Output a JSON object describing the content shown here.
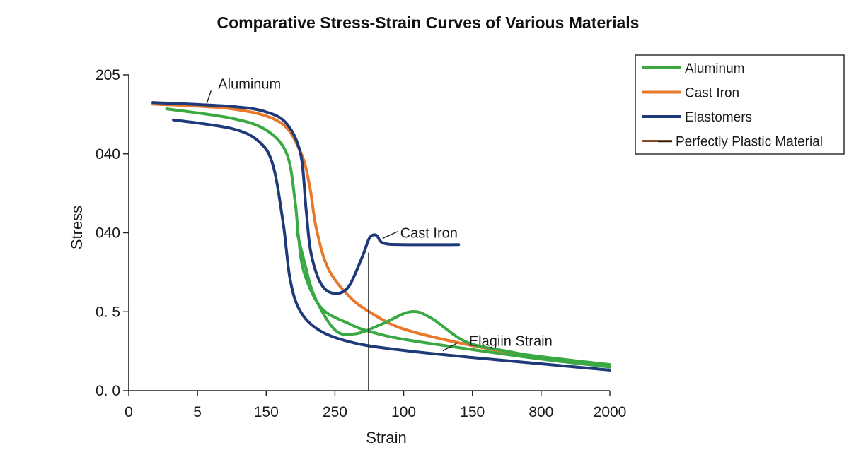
{
  "chart_data": {
    "type": "line",
    "title": "Comparative Stress-Strain Curves of Various Materials",
    "xlabel": "Strain",
    "ylabel": "Stress",
    "x_tick_labels": [
      "0",
      "5",
      "150",
      "250",
      "100",
      "150",
      "800",
      "2000"
    ],
    "y_tick_labels": [
      "0. 0",
      "0. 5",
      "040",
      "040",
      "205"
    ],
    "x_index_range": [
      0,
      7
    ],
    "y_index_range": [
      0,
      4
    ],
    "grid": false,
    "legend_position": "top-right",
    "legend": [
      {
        "label": "Aluminum",
        "color": "#3aa843"
      },
      {
        "label": "Cast Iron",
        "color": "#e8782a"
      },
      {
        "label": "Elastomers",
        "color": "#1f3a78"
      },
      {
        "label": "Perfectly Plastic Material",
        "color": "#8a4a2a"
      }
    ],
    "series": [
      {
        "color": "#e8782a",
        "points": [
          [
            0.35,
            3.63
          ],
          [
            1.5,
            3.57
          ],
          [
            2.2,
            3.4
          ],
          [
            2.5,
            3.02
          ],
          [
            2.63,
            2.6
          ],
          [
            2.73,
            2.05
          ],
          [
            2.9,
            1.55
          ],
          [
            3.2,
            1.2
          ],
          [
            3.5,
            1.0
          ],
          [
            4.0,
            0.78
          ],
          [
            5.0,
            0.57
          ],
          [
            6.0,
            0.42
          ],
          [
            7.0,
            0.33
          ]
        ]
      },
      {
        "color": "#1f3a78",
        "points": [
          [
            0.35,
            3.65
          ],
          [
            1.5,
            3.6
          ],
          [
            2.0,
            3.53
          ],
          [
            2.3,
            3.38
          ],
          [
            2.5,
            3.0
          ],
          [
            2.58,
            2.3
          ],
          [
            2.65,
            1.75
          ],
          [
            2.8,
            1.35
          ],
          [
            3.0,
            1.23
          ],
          [
            3.2,
            1.32
          ],
          [
            3.4,
            1.7
          ],
          [
            3.5,
            1.93
          ],
          [
            3.6,
            1.97
          ],
          [
            3.7,
            1.87
          ],
          [
            4.0,
            1.85
          ],
          [
            4.8,
            1.85
          ]
        ]
      },
      {
        "color": "#1f3a78",
        "points": [
          [
            0.65,
            3.43
          ],
          [
            1.5,
            3.32
          ],
          [
            1.9,
            3.15
          ],
          [
            2.1,
            2.85
          ],
          [
            2.25,
            2.1
          ],
          [
            2.35,
            1.4
          ],
          [
            2.5,
            1.0
          ],
          [
            2.8,
            0.75
          ],
          [
            3.3,
            0.6
          ],
          [
            4.0,
            0.51
          ],
          [
            5.0,
            0.42
          ],
          [
            6.0,
            0.34
          ],
          [
            7.0,
            0.26
          ]
        ]
      },
      {
        "color": "#3aa843",
        "points": [
          [
            0.55,
            3.57
          ],
          [
            1.5,
            3.45
          ],
          [
            2.0,
            3.3
          ],
          [
            2.3,
            3.0
          ],
          [
            2.42,
            2.4
          ],
          [
            2.47,
            1.95
          ],
          [
            2.55,
            1.5
          ],
          [
            2.8,
            1.05
          ],
          [
            3.2,
            0.85
          ],
          [
            3.5,
            0.75
          ],
          [
            4.0,
            0.65
          ],
          [
            5.0,
            0.52
          ],
          [
            6.0,
            0.4
          ],
          [
            7.0,
            0.3
          ]
        ]
      },
      {
        "color": "#3aa843",
        "points": [
          [
            2.45,
            2.0
          ],
          [
            2.55,
            1.65
          ],
          [
            2.7,
            1.2
          ],
          [
            3.0,
            0.77
          ],
          [
            3.3,
            0.72
          ],
          [
            3.7,
            0.85
          ],
          [
            4.1,
            1.0
          ],
          [
            4.4,
            0.92
          ],
          [
            4.9,
            0.62
          ],
          [
            5.5,
            0.5
          ],
          [
            6.0,
            0.43
          ],
          [
            7.0,
            0.33
          ]
        ]
      }
    ],
    "vertical_marker_x": 3.49,
    "annotations": [
      {
        "text": "Aluminum",
        "x": 1.3,
        "y": 3.89
      },
      {
        "text": "Cast Iron",
        "x": 3.95,
        "y": 2.0
      },
      {
        "text": "Elagiin Strain",
        "x": 4.95,
        "y": 0.63
      }
    ]
  }
}
